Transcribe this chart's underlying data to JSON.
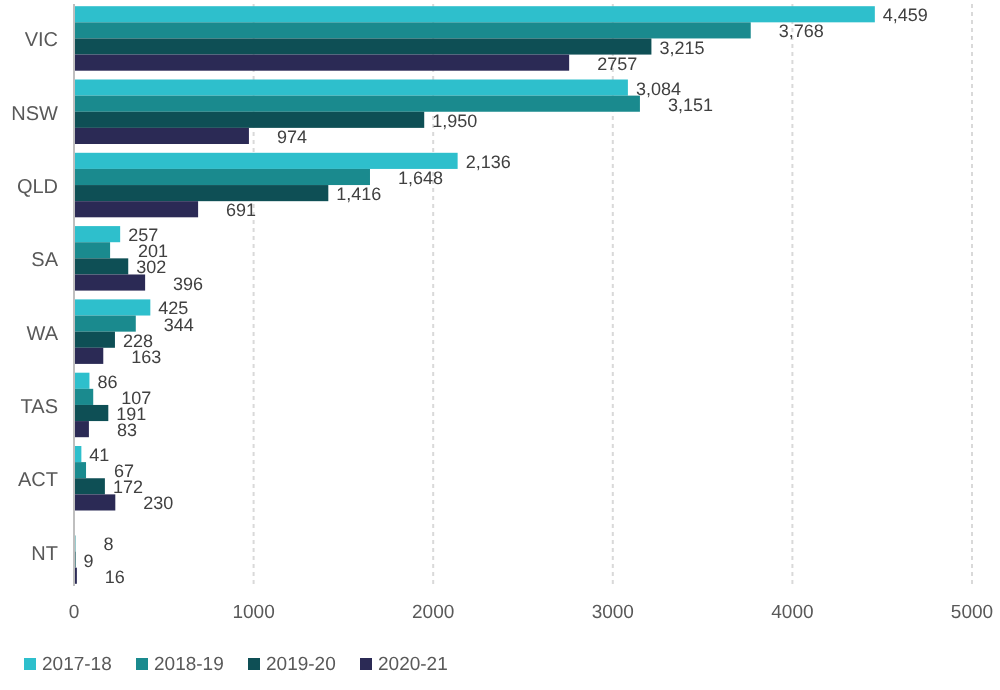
{
  "chart_data": {
    "type": "bar",
    "orientation": "horizontal",
    "categories": [
      "VIC",
      "NSW",
      "QLD",
      "SA",
      "WA",
      "TAS",
      "ACT",
      "NT"
    ],
    "series": [
      {
        "name": "2017-18",
        "color": "#2ebfcc",
        "values": [
          4459,
          3084,
          2136,
          257,
          425,
          86,
          41,
          null
        ],
        "value_labels": [
          "4,459",
          "3,084",
          "2,136",
          "257",
          "425",
          "86",
          "41",
          null
        ]
      },
      {
        "name": "2018-19",
        "color": "#1a8a8e",
        "values": [
          3768,
          3151,
          1648,
          201,
          344,
          107,
          67,
          8
        ],
        "value_labels": [
          "3,768",
          "3,151",
          "1,648",
          "201",
          "344",
          "107",
          "67",
          "8"
        ]
      },
      {
        "name": "2019-20",
        "color": "#0e4f55",
        "values": [
          3215,
          1950,
          1416,
          302,
          228,
          191,
          172,
          9
        ],
        "value_labels": [
          "3,215",
          "1,950",
          "1,416",
          "302",
          "228",
          "191",
          "172",
          "9"
        ]
      },
      {
        "name": "2020-21",
        "color": "#2b2a55",
        "values": [
          2757,
          974,
          691,
          396,
          163,
          83,
          230,
          16
        ],
        "value_labels": [
          "2757",
          "974",
          "691",
          "396",
          "163",
          "83",
          "230",
          "16"
        ]
      }
    ],
    "xlim": [
      0,
      5000
    ],
    "xticks": [
      0,
      1000,
      2000,
      3000,
      4000,
      5000
    ],
    "grid": "x",
    "legend": "bottom left"
  }
}
